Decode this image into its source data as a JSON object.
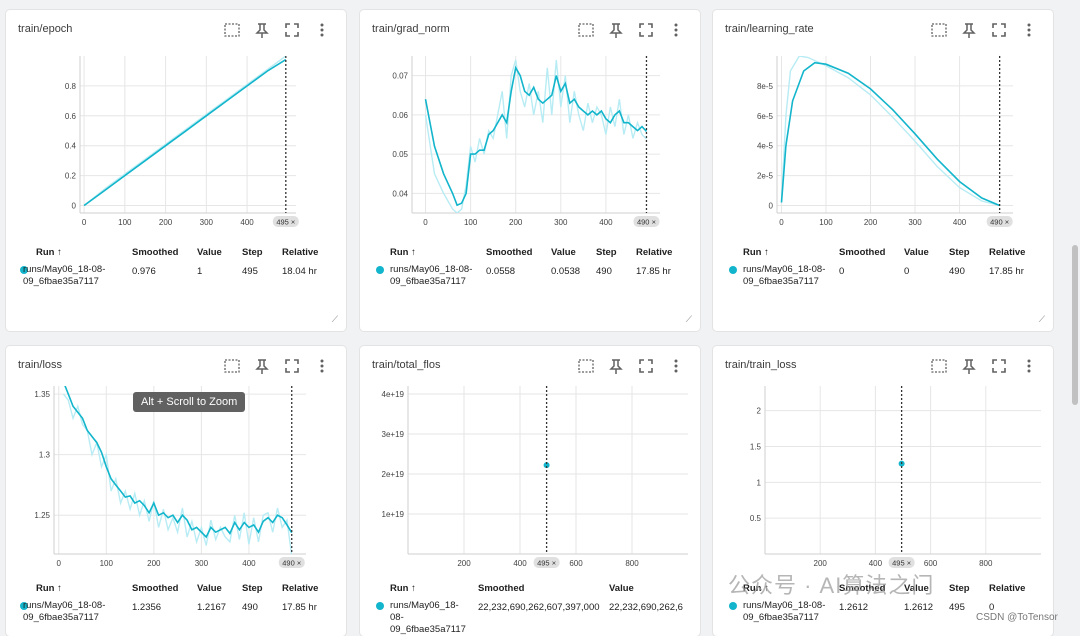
{
  "accent_color": "#12b5cb",
  "tooltip": "Alt + Scroll to Zoom",
  "watermark_main": "公众号 · AI算法之门",
  "watermark_small": "CSDN @ToTensor",
  "columns_a": [
    "Run ↑",
    "Smoothed",
    "Value",
    "Step",
    "Relative"
  ],
  "columns_b": [
    "Run ↑",
    "Smoothed",
    "Value"
  ],
  "cards": [
    {
      "title": "train/epoch",
      "step_badge": "495 ×",
      "run": [
        "runs/May06_18-08-",
        "09_6fbae35a7117"
      ],
      "row": [
        "0.976",
        "1",
        "495",
        "18.04 hr"
      ],
      "chart_data": {
        "type": "line",
        "x_ticks": [
          "0",
          "100",
          "200",
          "300",
          "400"
        ],
        "y_ticks": [
          "0",
          "0.2",
          "0.4",
          "0.6",
          "0.8"
        ],
        "xlim": [
          -10,
          520
        ],
        "ylim": [
          -0.05,
          1.0
        ],
        "series": [
          {
            "x": [
              0,
              50,
              100,
              150,
              200,
              250,
              300,
              350,
              400,
              450,
              495
            ],
            "y": [
              0,
              0.1,
              0.2,
              0.3,
              0.4,
              0.5,
              0.6,
              0.7,
              0.8,
              0.9,
              0.976
            ]
          },
          {
            "x": [
              0,
              50,
              100,
              150,
              200,
              250,
              300,
              350,
              400,
              450,
              495
            ],
            "y": [
              0,
              0.11,
              0.21,
              0.31,
              0.41,
              0.51,
              0.61,
              0.71,
              0.81,
              0.91,
              1.0
            ]
          }
        ],
        "cursor_x": 495
      }
    },
    {
      "title": "train/grad_norm",
      "step_badge": "490 ×",
      "run": [
        "runs/May06_18-08-",
        "09_6fbae35a7117"
      ],
      "row": [
        "0.0558",
        "0.0538",
        "490",
        "17.85 hr"
      ],
      "chart_data": {
        "type": "line",
        "x_ticks": [
          "0",
          "100",
          "200",
          "300",
          "400"
        ],
        "y_ticks": [
          "0.04",
          "0.05",
          "0.06",
          "0.07"
        ],
        "xlim": [
          -30,
          520
        ],
        "ylim": [
          0.035,
          0.075
        ],
        "series": [
          {
            "x": [
              0,
              20,
              40,
              60,
              70,
              80,
              90,
              100,
              110,
              120,
              130,
              140,
              150,
              160,
              170,
              180,
              190,
              200,
              210,
              220,
              230,
              240,
              250,
              260,
              270,
              280,
              290,
              300,
              310,
              320,
              330,
              340,
              350,
              360,
              370,
              380,
              390,
              400,
              410,
              420,
              430,
              440,
              450,
              460,
              470,
              480,
              490
            ],
            "y": [
              0.064,
              0.052,
              0.045,
              0.04,
              0.037,
              0.0375,
              0.04,
              0.05,
              0.05,
              0.051,
              0.051,
              0.055,
              0.056,
              0.058,
              0.06,
              0.058,
              0.066,
              0.072,
              0.07,
              0.066,
              0.065,
              0.067,
              0.064,
              0.063,
              0.064,
              0.065,
              0.07,
              0.066,
              0.068,
              0.063,
              0.064,
              0.062,
              0.061,
              0.06,
              0.061,
              0.06,
              0.061,
              0.059,
              0.058,
              0.06,
              0.061,
              0.058,
              0.058,
              0.057,
              0.056,
              0.057,
              0.0558
            ]
          },
          {
            "x": [
              0,
              20,
              40,
              60,
              70,
              80,
              90,
              100,
              110,
              120,
              130,
              140,
              150,
              160,
              170,
              180,
              190,
              200,
              210,
              220,
              230,
              240,
              250,
              260,
              270,
              280,
              290,
              300,
              310,
              320,
              330,
              340,
              350,
              360,
              370,
              380,
              390,
              400,
              410,
              420,
              430,
              440,
              450,
              460,
              470,
              480,
              490
            ],
            "y": [
              0.06,
              0.045,
              0.04,
              0.036,
              0.035,
              0.036,
              0.042,
              0.052,
              0.048,
              0.054,
              0.05,
              0.056,
              0.054,
              0.06,
              0.066,
              0.054,
              0.07,
              0.074,
              0.066,
              0.062,
              0.068,
              0.06,
              0.066,
              0.058,
              0.072,
              0.06,
              0.074,
              0.062,
              0.07,
              0.058,
              0.066,
              0.06,
              0.056,
              0.063,
              0.058,
              0.062,
              0.06,
              0.055,
              0.062,
              0.057,
              0.064,
              0.055,
              0.06,
              0.054,
              0.058,
              0.055,
              0.0538
            ]
          }
        ],
        "cursor_x": 490
      }
    },
    {
      "title": "train/learning_rate",
      "step_badge": "490 ×",
      "run": [
        "runs/May06_18-08-",
        "09_6fbae35a7117"
      ],
      "row": [
        "0",
        "0",
        "490",
        "17.85 hr"
      ],
      "chart_data": {
        "type": "line",
        "x_ticks": [
          "0",
          "100",
          "200",
          "300",
          "400"
        ],
        "y_ticks": [
          "0",
          "2e-5",
          "4e-5",
          "6e-5",
          "8e-5"
        ],
        "xlim": [
          -10,
          520
        ],
        "ylim": [
          -5e-06,
          0.0001
        ],
        "series": [
          {
            "x": [
              0,
              10,
              25,
              50,
              75,
              100,
              150,
              200,
              250,
              300,
              350,
              400,
              450,
              490
            ],
            "y": [
              2e-06,
              4e-05,
              7e-05,
              9e-05,
              9.55e-05,
              9.45e-05,
              8.85e-05,
              7.8e-05,
              6.4e-05,
              4.8e-05,
              3.1e-05,
              1.6e-05,
              5e-06,
              0
            ]
          },
          {
            "x": [
              0,
              10,
              20,
              40,
              60,
              100,
              150,
              200,
              250,
              300,
              350,
              400,
              450,
              490
            ],
            "y": [
              3e-06,
              6e-05,
              9e-05,
              0.0001,
              9.9e-05,
              9.35e-05,
              8.55e-05,
              7.4e-05,
              5.9e-05,
              4.3e-05,
              2.6e-05,
              1.2e-05,
              3e-06,
              0
            ]
          }
        ],
        "cursor_x": 490
      }
    },
    {
      "title": "train/loss",
      "step_badge": "490 ×",
      "run": [
        "runs/May06_18-08-",
        "09_6fbae35a7117"
      ],
      "row": [
        "1.2356",
        "1.2167",
        "490",
        "17.85 hr"
      ],
      "chart_data": {
        "type": "line",
        "x_ticks": [
          "0",
          "100",
          "200",
          "300",
          "400"
        ],
        "y_ticks": [
          "1.25",
          "1.3",
          "1.35"
        ],
        "xlim": [
          -10,
          520
        ],
        "ylim": [
          1.218,
          1.36
        ],
        "series": [
          {
            "x": [
              10,
              20,
              30,
              40,
              50,
              60,
              70,
              80,
              90,
              100,
              110,
              120,
              130,
              140,
              150,
              160,
              170,
              180,
              190,
              200,
              210,
              220,
              230,
              240,
              250,
              260,
              270,
              280,
              290,
              300,
              310,
              320,
              330,
              340,
              350,
              360,
              370,
              380,
              390,
              400,
              410,
              420,
              430,
              440,
              450,
              460,
              470,
              480,
              490
            ],
            "y": [
              1.36,
              1.35,
              1.34,
              1.335,
              1.33,
              1.32,
              1.315,
              1.31,
              1.302,
              1.29,
              1.28,
              1.275,
              1.27,
              1.265,
              1.266,
              1.26,
              1.262,
              1.258,
              1.252,
              1.26,
              1.25,
              1.252,
              1.248,
              1.25,
              1.244,
              1.25,
              1.246,
              1.238,
              1.24,
              1.236,
              1.232,
              1.24,
              1.236,
              1.238,
              1.24,
              1.235,
              1.244,
              1.238,
              1.244,
              1.24,
              1.242,
              1.236,
              1.245,
              1.248,
              1.244,
              1.25,
              1.248,
              1.242,
              1.2356
            ]
          },
          {
            "x": [
              10,
              20,
              30,
              40,
              50,
              60,
              70,
              80,
              90,
              100,
              110,
              120,
              130,
              140,
              150,
              160,
              170,
              180,
              190,
              200,
              210,
              220,
              230,
              240,
              250,
              260,
              270,
              280,
              290,
              300,
              310,
              320,
              330,
              340,
              350,
              360,
              370,
              380,
              390,
              400,
              410,
              420,
              430,
              440,
              450,
              460,
              470,
              480,
              490
            ],
            "y": [
              1.35,
              1.345,
              1.33,
              1.34,
              1.325,
              1.32,
              1.3,
              1.31,
              1.29,
              1.3,
              1.27,
              1.28,
              1.26,
              1.27,
              1.255,
              1.268,
              1.25,
              1.262,
              1.245,
              1.262,
              1.24,
              1.255,
              1.238,
              1.248,
              1.236,
              1.256,
              1.232,
              1.245,
              1.228,
              1.24,
              1.225,
              1.246,
              1.23,
              1.24,
              1.232,
              1.228,
              1.25,
              1.23,
              1.252,
              1.226,
              1.248,
              1.228,
              1.25,
              1.252,
              1.236,
              1.256,
              1.24,
              1.246,
              1.2167
            ]
          }
        ],
        "cursor_x": 490
      }
    },
    {
      "title": "train/total_flos",
      "step_badge": "495 ×",
      "run": [
        "runs/May06_18-",
        "08-",
        "09_6fbae35a7117"
      ],
      "row": [
        "22,232,690,262,607,397,000",
        "22,232,690,262,6"
      ],
      "chart_data": {
        "type": "scatter",
        "x_ticks": [
          "200",
          "400",
          "600",
          "800"
        ],
        "y_ticks": [
          "1e+19",
          "2e+19",
          "3e+19",
          "4e+19"
        ],
        "xlim": [
          0,
          1000
        ],
        "ylim": [
          0,
          4.3e+19
        ],
        "points": [
          {
            "x": 495,
            "y": 2.2232690262607397e+19
          }
        ],
        "cursor_x": 495
      }
    },
    {
      "title": "train/train_loss",
      "step_badge": "495 ×",
      "run": [
        "runs/May06_18-08-",
        "09_6fbae35a7117"
      ],
      "row": [
        "1.2612",
        "1.2612",
        "495",
        "0"
      ],
      "chart_data": {
        "type": "scatter",
        "x_ticks": [
          "200",
          "400",
          "600",
          "800"
        ],
        "y_ticks": [
          "0.5",
          "1",
          "1.5",
          "2"
        ],
        "xlim": [
          0,
          1000
        ],
        "ylim": [
          0,
          2.4
        ],
        "points": [
          {
            "x": 495,
            "y": 1.2612
          }
        ],
        "cursor_x": 495
      }
    }
  ]
}
